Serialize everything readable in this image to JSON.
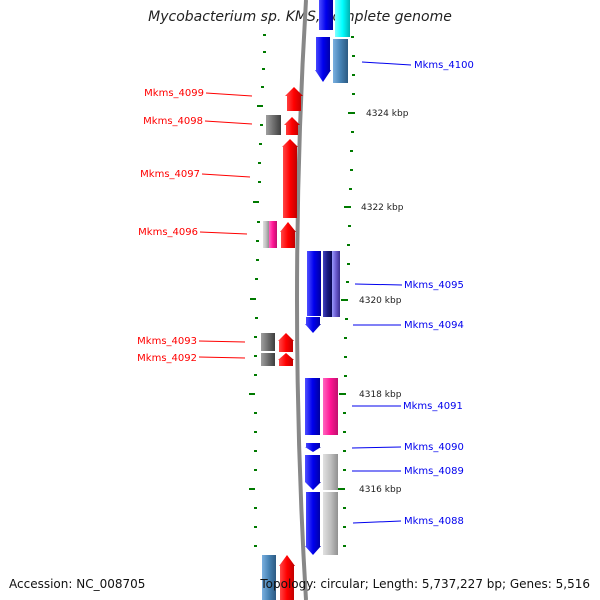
{
  "title": "Mycobacterium sp. KMS, complete genome",
  "accession": "Accession: NC_008705",
  "topology": "Topology: circular; Length: 5,737,227 bp; Genes: 5,516",
  "colors": {
    "red": "#ff0000",
    "blue": "#0000ee",
    "tick": "#007a00",
    "backbone": "#888888"
  },
  "ticks_major": [
    {
      "label": "4324 kbp"
    },
    {
      "label": "4322 kbp"
    },
    {
      "label": "4320 kbp"
    },
    {
      "label": "4318 kbp"
    },
    {
      "label": "4316 kbp"
    }
  ],
  "reverse_genes": [
    {
      "label": "Mkms_4099"
    },
    {
      "label": "Mkms_4098"
    },
    {
      "label": "Mkms_4097"
    },
    {
      "label": "Mkms_4096"
    },
    {
      "label": "Mkms_4093"
    },
    {
      "label": "Mkms_4092"
    }
  ],
  "forward_genes": [
    {
      "label": "Mkms_4100"
    },
    {
      "label": "Mkms_4095"
    },
    {
      "label": "Mkms_4094"
    },
    {
      "label": "Mkms_4091"
    },
    {
      "label": "Mkms_4090"
    },
    {
      "label": "Mkms_4089"
    },
    {
      "label": "Mkms_4088"
    }
  ]
}
